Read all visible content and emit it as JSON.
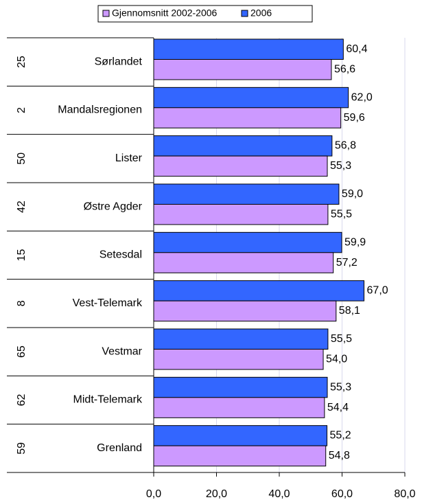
{
  "chart_data": {
    "type": "barh",
    "categories": [
      "Sørlandet",
      "Mandalsregionen",
      "Lister",
      "Østre Agder",
      "Setesdal",
      "Vest-Telemark",
      "Vestmar",
      "Midt-Telemark",
      "Grenland"
    ],
    "ranks": [
      25,
      2,
      50,
      42,
      15,
      8,
      65,
      62,
      59
    ],
    "series": [
      {
        "name": "Gjennomsnitt 2002-2006",
        "color": "#cc99ff",
        "values": [
          56.6,
          59.6,
          55.3,
          55.5,
          57.2,
          58.1,
          54.0,
          54.4,
          54.8
        ],
        "value_labels": [
          "56,6",
          "59,6",
          "55,3",
          "55,5",
          "57,2",
          "58,1",
          "54,0",
          "54,4",
          "54,8"
        ]
      },
      {
        "name": "2006",
        "color": "#3366ff",
        "values": [
          60.4,
          62.0,
          56.8,
          59.0,
          59.9,
          67.0,
          55.5,
          55.3,
          55.2
        ],
        "value_labels": [
          "60,4",
          "62,0",
          "56,8",
          "59,0",
          "59,9",
          "67,0",
          "55,5",
          "55,3",
          "55,2"
        ]
      }
    ],
    "xlim": [
      0,
      80
    ],
    "xticks": [
      {
        "value": 0,
        "label": "0,0"
      },
      {
        "value": 20,
        "label": "20,0"
      },
      {
        "value": 40,
        "label": "40,0"
      },
      {
        "value": 60,
        "label": "60,0"
      },
      {
        "value": 80,
        "label": "80,0"
      }
    ],
    "grid": true
  }
}
